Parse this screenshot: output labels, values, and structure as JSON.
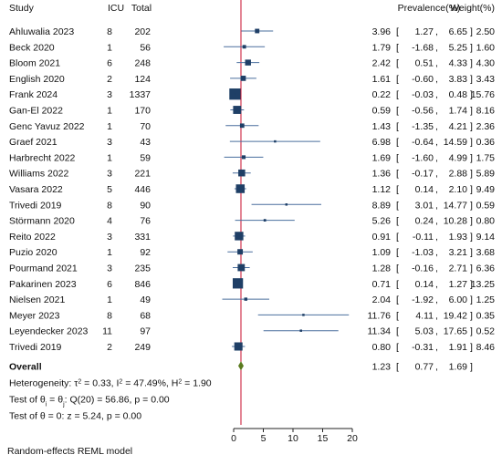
{
  "chart_data": {
    "type": "forest",
    "headers": {
      "study": "Study",
      "icu": "ICU",
      "total": "Total",
      "estimate": "Prevalence(%)",
      "weight": "Weight(%)"
    },
    "xlim": [
      0,
      20
    ],
    "xticks": [
      "0",
      "5",
      "10",
      "15",
      "20"
    ],
    "reference_line": 1.23,
    "rows": [
      {
        "study": "Ahluwalia 2023",
        "icu": "8",
        "total": "202",
        "est": 3.96,
        "lo": 1.27,
        "hi": 6.65,
        "est_txt": "3.96",
        "lo_txt": "1.27",
        "hi_txt": "6.65",
        "weight": 2.5,
        "weight_txt": "2.50"
      },
      {
        "study": "Beck 2020",
        "icu": "1",
        "total": "56",
        "est": 1.79,
        "lo": -1.68,
        "hi": 5.25,
        "est_txt": "1.79",
        "lo_txt": "-1.68",
        "hi_txt": "5.25",
        "weight": 1.6,
        "weight_txt": "1.60"
      },
      {
        "study": "Bloom 2021",
        "icu": "6",
        "total": "248",
        "est": 2.42,
        "lo": 0.51,
        "hi": 4.33,
        "est_txt": "2.42",
        "lo_txt": "0.51",
        "hi_txt": "4.33",
        "weight": 4.3,
        "weight_txt": "4.30"
      },
      {
        "study": "English  2020",
        "icu": "2",
        "total": "124",
        "est": 1.61,
        "lo": -0.6,
        "hi": 3.83,
        "est_txt": "1.61",
        "lo_txt": "-0.60",
        "hi_txt": "3.83",
        "weight": 3.43,
        "weight_txt": "3.43"
      },
      {
        "study": "Frank 2024",
        "icu": "3",
        "total": "1337",
        "est": 0.22,
        "lo": -0.03,
        "hi": 0.48,
        "est_txt": "0.22",
        "lo_txt": "-0.03",
        "hi_txt": "0.48",
        "weight": 15.76,
        "weight_txt": "15.76"
      },
      {
        "study": "Gan-El 2022",
        "icu": "1",
        "total": "170",
        "est": 0.59,
        "lo": -0.56,
        "hi": 1.74,
        "est_txt": "0.59",
        "lo_txt": "-0.56",
        "hi_txt": "1.74",
        "weight": 8.16,
        "weight_txt": "8.16"
      },
      {
        "study": "Genc Yavuz 2022",
        "icu": "1",
        "total": "70",
        "est": 1.43,
        "lo": -1.35,
        "hi": 4.21,
        "est_txt": "1.43",
        "lo_txt": "-1.35",
        "hi_txt": "4.21",
        "weight": 2.36,
        "weight_txt": "2.36"
      },
      {
        "study": "Graef 2021",
        "icu": "3",
        "total": "43",
        "est": 6.98,
        "lo": -0.64,
        "hi": 14.59,
        "est_txt": "6.98",
        "lo_txt": "-0.64",
        "hi_txt": "14.59",
        "weight": 0.36,
        "weight_txt": "0.36"
      },
      {
        "study": "Harbrecht 2022",
        "icu": "1",
        "total": "59",
        "est": 1.69,
        "lo": -1.6,
        "hi": 4.99,
        "est_txt": "1.69",
        "lo_txt": "-1.60",
        "hi_txt": "4.99",
        "weight": 1.75,
        "weight_txt": "1.75"
      },
      {
        "study": "Williams 2022",
        "icu": "3",
        "total": "221",
        "est": 1.36,
        "lo": -0.17,
        "hi": 2.88,
        "est_txt": "1.36",
        "lo_txt": "-0.17",
        "hi_txt": "2.88",
        "weight": 5.89,
        "weight_txt": "5.89"
      },
      {
        "study": "Vasara 2022",
        "icu": "5",
        "total": "446",
        "est": 1.12,
        "lo": 0.14,
        "hi": 2.1,
        "est_txt": "1.12",
        "lo_txt": "0.14",
        "hi_txt": "2.10",
        "weight": 9.49,
        "weight_txt": "9.49"
      },
      {
        "study": "Trivedi 2019",
        "icu": "8",
        "total": "90",
        "est": 8.89,
        "lo": 3.01,
        "hi": 14.77,
        "est_txt": "8.89",
        "lo_txt": "3.01",
        "hi_txt": "14.77",
        "weight": 0.59,
        "weight_txt": "0.59"
      },
      {
        "study": "Störmann 2020",
        "icu": "4",
        "total": "76",
        "est": 5.26,
        "lo": 0.24,
        "hi": 10.28,
        "est_txt": "5.26",
        "lo_txt": "0.24",
        "hi_txt": "10.28",
        "weight": 0.8,
        "weight_txt": "0.80"
      },
      {
        "study": "Reito 2022",
        "icu": "3",
        "total": "331",
        "est": 0.91,
        "lo": -0.11,
        "hi": 1.93,
        "est_txt": "0.91",
        "lo_txt": "-0.11",
        "hi_txt": "1.93",
        "weight": 9.14,
        "weight_txt": "9.14"
      },
      {
        "study": "Puzio 2020",
        "icu": "1",
        "total": "92",
        "est": 1.09,
        "lo": -1.03,
        "hi": 3.21,
        "est_txt": "1.09",
        "lo_txt": "-1.03",
        "hi_txt": "3.21",
        "weight": 3.68,
        "weight_txt": "3.68"
      },
      {
        "study": "Pourmand 2021",
        "icu": "3",
        "total": "235",
        "est": 1.28,
        "lo": -0.16,
        "hi": 2.71,
        "est_txt": "1.28",
        "lo_txt": "-0.16",
        "hi_txt": "2.71",
        "weight": 6.36,
        "weight_txt": "6.36"
      },
      {
        "study": "Pakarinen 2023",
        "icu": "6",
        "total": "846",
        "est": 0.71,
        "lo": 0.14,
        "hi": 1.27,
        "est_txt": "0.71",
        "lo_txt": "0.14",
        "hi_txt": "1.27",
        "weight": 13.25,
        "weight_txt": "13.25"
      },
      {
        "study": "Nielsen 2021",
        "icu": "1",
        "total": "49",
        "est": 2.04,
        "lo": -1.92,
        "hi": 6.0,
        "est_txt": "2.04",
        "lo_txt": "-1.92",
        "hi_txt": "6.00",
        "weight": 1.25,
        "weight_txt": "1.25"
      },
      {
        "study": "Meyer 2023",
        "icu": "8",
        "total": "68",
        "est": 11.76,
        "lo": 4.11,
        "hi": 19.42,
        "est_txt": "11.76",
        "lo_txt": "4.11",
        "hi_txt": "19.42",
        "weight": 0.35,
        "weight_txt": "0.35"
      },
      {
        "study": "Leyendecker 2023",
        "icu": "11",
        "total": "97",
        "est": 11.34,
        "lo": 5.03,
        "hi": 17.65,
        "est_txt": "11.34",
        "lo_txt": "5.03",
        "hi_txt": "17.65",
        "weight": 0.52,
        "weight_txt": "0.52"
      },
      {
        "study": "Trivedi 2019",
        "icu": "2",
        "total": "249",
        "est": 0.8,
        "lo": -0.31,
        "hi": 1.91,
        "est_txt": "0.80",
        "lo_txt": "-0.31",
        "hi_txt": "1.91",
        "weight": 8.46,
        "weight_txt": "8.46"
      }
    ],
    "overall": {
      "label": "Overall",
      "est": 1.23,
      "lo": 0.77,
      "hi": 1.69,
      "est_txt": "1.23",
      "lo_txt": "0.77",
      "hi_txt": "1.69"
    },
    "stats": {
      "heterogeneity": {
        "prefix": "Heterogeneity: τ",
        "tau_sq": "0.33",
        "i_sq": "47.49%",
        "h_sq": "1.90"
      },
      "test_theta_i": {
        "prefix": "Test of θ",
        "q": "Q(20) = 56.86, p = 0.00"
      },
      "test_theta_0": "Test of θ = 0: z = 5.24, p = 0.00"
    },
    "footer": "Random-effects REML model",
    "colors": {
      "marker": "#1f3f66",
      "ci_line": "#4a6f9e",
      "diamond": "#5a7a1e",
      "reference_line": "#c8102e",
      "axis": "#222222"
    }
  }
}
